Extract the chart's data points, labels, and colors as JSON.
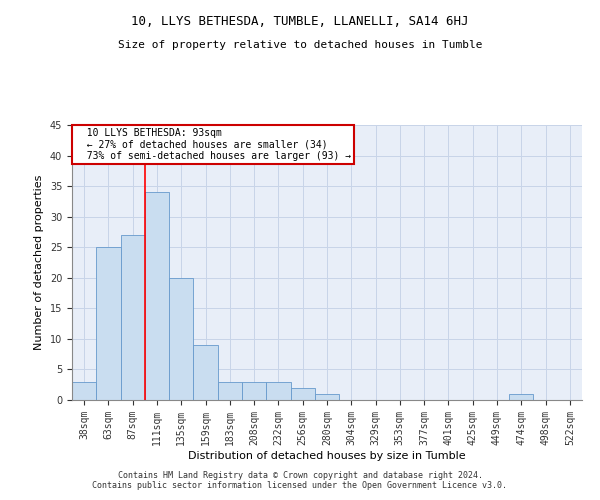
{
  "title": "10, LLYS BETHESDA, TUMBLE, LLANELLI, SA14 6HJ",
  "subtitle": "Size of property relative to detached houses in Tumble",
  "xlabel": "Distribution of detached houses by size in Tumble",
  "ylabel": "Number of detached properties",
  "bar_values": [
    3,
    25,
    27,
    34,
    20,
    9,
    3,
    3,
    3,
    2,
    1,
    0,
    0,
    0,
    0,
    0,
    0,
    0,
    1,
    0,
    0
  ],
  "x_labels": [
    "38sqm",
    "63sqm",
    "87sqm",
    "111sqm",
    "135sqm",
    "159sqm",
    "183sqm",
    "208sqm",
    "232sqm",
    "256sqm",
    "280sqm",
    "304sqm",
    "329sqm",
    "353sqm",
    "377sqm",
    "401sqm",
    "425sqm",
    "449sqm",
    "474sqm",
    "498sqm",
    "522sqm"
  ],
  "bar_color": "#c9ddf0",
  "bar_edge_color": "#6699cc",
  "grid_color": "#c8d4e8",
  "bg_color": "#e8eef8",
  "red_line_x": 2.5,
  "annotation_text": "  10 LLYS BETHESDA: 93sqm\n  ← 27% of detached houses are smaller (34)\n  73% of semi-detached houses are larger (93) →",
  "annotation_box_color": "#ffffff",
  "annotation_box_edge": "#cc0000",
  "ylim": [
    0,
    45
  ],
  "yticks": [
    0,
    5,
    10,
    15,
    20,
    25,
    30,
    35,
    40,
    45
  ],
  "footer": "Contains HM Land Registry data © Crown copyright and database right 2024.\nContains public sector information licensed under the Open Government Licence v3.0.",
  "title_fontsize": 9,
  "subtitle_fontsize": 8,
  "ylabel_fontsize": 8,
  "xlabel_fontsize": 8,
  "tick_fontsize": 7,
  "footer_fontsize": 6
}
